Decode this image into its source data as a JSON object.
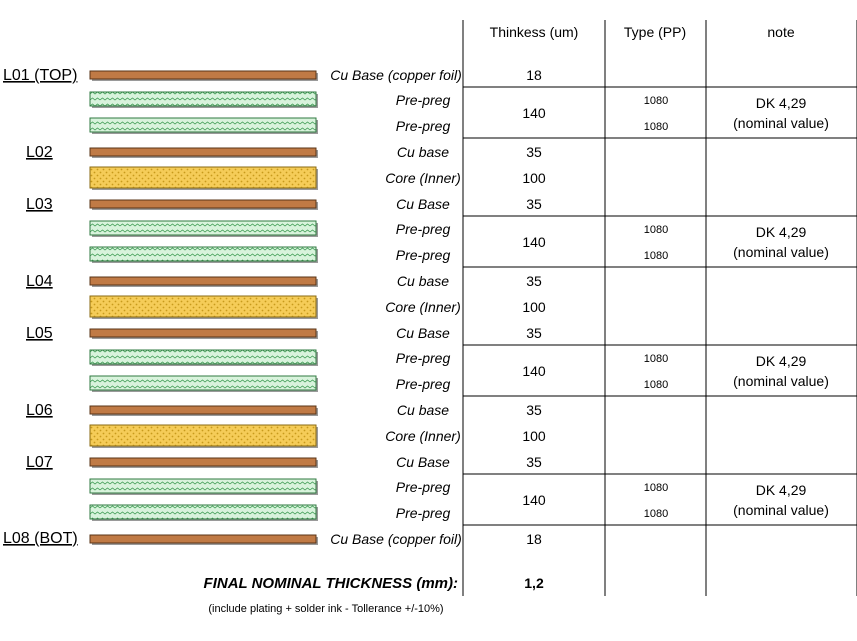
{
  "headers": {
    "thickness": "Thinkess (um)",
    "type": "Type (PP)",
    "note": "note"
  },
  "layers": [
    {
      "id": "l01",
      "label": "L01 (TOP)"
    },
    {
      "id": "l02",
      "label": "L02"
    },
    {
      "id": "l03",
      "label": "L03"
    },
    {
      "id": "l04",
      "label": "L04"
    },
    {
      "id": "l05",
      "label": "L05"
    },
    {
      "id": "l06",
      "label": "L06"
    },
    {
      "id": "l07",
      "label": "L07"
    },
    {
      "id": "l08",
      "label": "L08 (BOT)"
    }
  ],
  "rows": [
    {
      "kind": "cu",
      "material": "Cu Base (copper foil)",
      "thickness": "18"
    },
    {
      "kind": "pp",
      "material": "Pre-preg",
      "pp_type": "1080"
    },
    {
      "kind": "pp",
      "material": "Pre-preg",
      "pp_type": "1080"
    },
    {
      "kind": "cu",
      "material": "Cu base",
      "thickness": "35"
    },
    {
      "kind": "core",
      "material": "Core (Inner)",
      "thickness": "100"
    },
    {
      "kind": "cu",
      "material": "Cu Base",
      "thickness": "35"
    },
    {
      "kind": "pp",
      "material": "Pre-preg",
      "pp_type": "1080"
    },
    {
      "kind": "pp",
      "material": "Pre-preg",
      "pp_type": "1080"
    },
    {
      "kind": "cu",
      "material": "Cu base",
      "thickness": "35"
    },
    {
      "kind": "core",
      "material": "Core (Inner)",
      "thickness": "100"
    },
    {
      "kind": "cu",
      "material": "Cu Base",
      "thickness": "35"
    },
    {
      "kind": "pp",
      "material": "Pre-preg",
      "pp_type": "1080"
    },
    {
      "kind": "pp",
      "material": "Pre-preg",
      "pp_type": "1080"
    },
    {
      "kind": "cu",
      "material": "Cu base",
      "thickness": "35"
    },
    {
      "kind": "core",
      "material": "Core (Inner)",
      "thickness": "100"
    },
    {
      "kind": "cu",
      "material": "Cu Base",
      "thickness": "35"
    },
    {
      "kind": "pp",
      "material": "Pre-preg",
      "pp_type": "1080"
    },
    {
      "kind": "pp",
      "material": "Pre-preg",
      "pp_type": "1080"
    },
    {
      "kind": "cu",
      "material": "Cu Base (copper foil)",
      "thickness": "18"
    }
  ],
  "prepreg_groups": [
    {
      "thickness": "140",
      "note_1": "DK 4,29",
      "note_2": "(nominal value)"
    },
    {
      "thickness": "140",
      "note_1": "DK 4,29",
      "note_2": "(nominal value)"
    },
    {
      "thickness": "140",
      "note_1": "DK 4,29",
      "note_2": "(nominal value)"
    },
    {
      "thickness": "140",
      "note_1": "DK 4,29",
      "note_2": "(nominal value)"
    }
  ],
  "final": {
    "label": "FINAL NOMINAL THICKNESS (mm):",
    "value": "1,2",
    "footnote": "(include plating + solder ink - Tollerance +/-10%)"
  },
  "colors": {
    "copper": "#c07a45",
    "copper_edge": "#5a3417",
    "prepreg": "#d8f3dc",
    "prepreg_pattern": "#3a9a50",
    "core": "#f5cc58",
    "core_pattern": "#c89a1c",
    "grid": "#000000"
  }
}
